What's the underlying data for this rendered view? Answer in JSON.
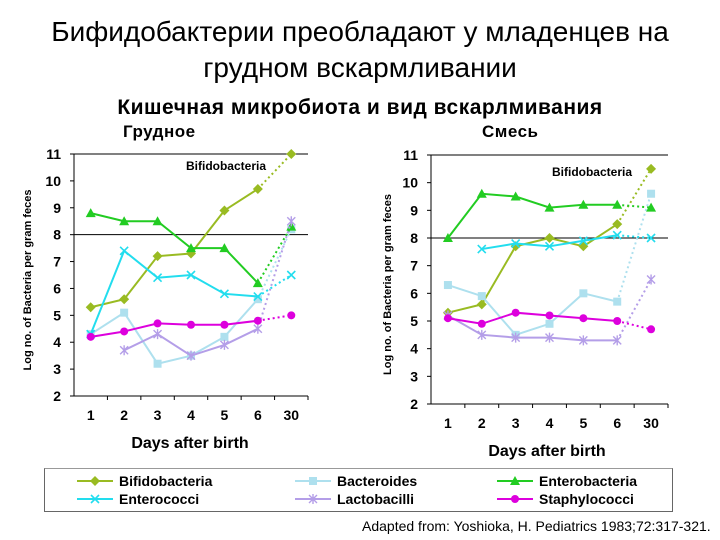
{
  "header": {
    "title": "Бифидобактерии преобладают у младенцев на грудном вскармливании",
    "subtitle": "Кишечная микробиота и вид вскарлмивания",
    "source": "Adapted from: Yoshioka, H. Pediatrics 1983;72:317-321."
  },
  "colors": {
    "Bifidobacteria": "#99bb22",
    "Bacteroides": "#aee0ee",
    "Enterobacteria": "#22cc22",
    "Enterococci": "#22ddee",
    "Lactobacilli": "#b49ee8",
    "Staphylococci": "#dd00dd"
  },
  "legend": [
    {
      "series": "Bifidobacteria",
      "label": "Bifidobacteria",
      "marker": "diamond"
    },
    {
      "series": "Bacteroides",
      "label": "Bacteroides",
      "marker": "square"
    },
    {
      "series": "Enterobacteria",
      "label": "Enterobacteria",
      "marker": "triangle"
    },
    {
      "series": "Enterococci",
      "label": "Enterococci",
      "marker": "x"
    },
    {
      "series": "Lactobacilli",
      "label": "Lactobacilli",
      "marker": "star"
    },
    {
      "series": "Staphylococci",
      "label": "Staphylococci",
      "marker": "circle"
    }
  ],
  "chart_data": [
    {
      "type": "line",
      "panel_label": "Грудное",
      "annotation": "Bifidobacteria",
      "xlabel": "Days after birth",
      "ylabel": "Log no. of Bacteria per gram feces",
      "categories": [
        "1",
        "2",
        "3",
        "4",
        "5",
        "6",
        "30"
      ],
      "ylim": [
        2,
        11
      ],
      "yticks": [
        "2",
        "3",
        "4",
        "5",
        "6",
        "7",
        "8",
        "9",
        "10",
        "11"
      ],
      "gridlines": [
        8,
        11
      ],
      "last_point_dotted": true,
      "series": [
        {
          "name": "Bifidobacteria",
          "values": [
            5.3,
            5.6,
            7.2,
            7.3,
            8.9,
            9.7,
            11.0
          ]
        },
        {
          "name": "Bacteroides",
          "values": [
            4.3,
            5.1,
            3.2,
            3.5,
            4.2,
            5.6,
            8.2
          ]
        },
        {
          "name": "Enterobacteria",
          "values": [
            8.8,
            8.5,
            8.5,
            7.5,
            7.5,
            6.2,
            8.3
          ]
        },
        {
          "name": "Enterococci",
          "values": [
            4.3,
            7.4,
            6.4,
            6.5,
            5.8,
            5.7,
            6.5
          ]
        },
        {
          "name": "Lactobacilli",
          "values": [
            null,
            3.7,
            4.3,
            3.5,
            3.9,
            4.5,
            8.5
          ]
        },
        {
          "name": "Staphylococci",
          "values": [
            4.2,
            4.4,
            4.7,
            4.65,
            4.65,
            4.8,
            5.0
          ]
        }
      ]
    },
    {
      "type": "line",
      "panel_label": "Смесь",
      "annotation": "Bifidobacteria",
      "xlabel": "Days after birth",
      "ylabel": "Log no. of Bacteria per gram feces",
      "categories": [
        "1",
        "2",
        "3",
        "4",
        "5",
        "6",
        "30"
      ],
      "ylim": [
        2,
        11
      ],
      "yticks": [
        "2",
        "3",
        "4",
        "5",
        "6",
        "7",
        "8",
        "9",
        "10",
        "11"
      ],
      "gridlines": [
        8,
        11
      ],
      "last_point_dotted": true,
      "series": [
        {
          "name": "Bifidobacteria",
          "values": [
            5.3,
            5.6,
            7.7,
            8.0,
            7.7,
            8.5,
            10.5
          ]
        },
        {
          "name": "Bacteroides",
          "values": [
            6.3,
            5.9,
            4.5,
            4.9,
            6.0,
            5.7,
            9.6
          ]
        },
        {
          "name": "Enterobacteria",
          "values": [
            8.0,
            9.6,
            9.5,
            9.1,
            9.2,
            9.2,
            9.1
          ]
        },
        {
          "name": "Enterococci",
          "values": [
            null,
            7.6,
            7.8,
            7.7,
            7.9,
            8.1,
            8.0
          ]
        },
        {
          "name": "Lactobacilli",
          "values": [
            5.2,
            4.5,
            4.4,
            4.4,
            4.3,
            4.3,
            6.5
          ]
        },
        {
          "name": "Staphylococci",
          "values": [
            5.1,
            4.9,
            5.3,
            5.2,
            5.1,
            5.0,
            4.7
          ]
        }
      ]
    }
  ]
}
